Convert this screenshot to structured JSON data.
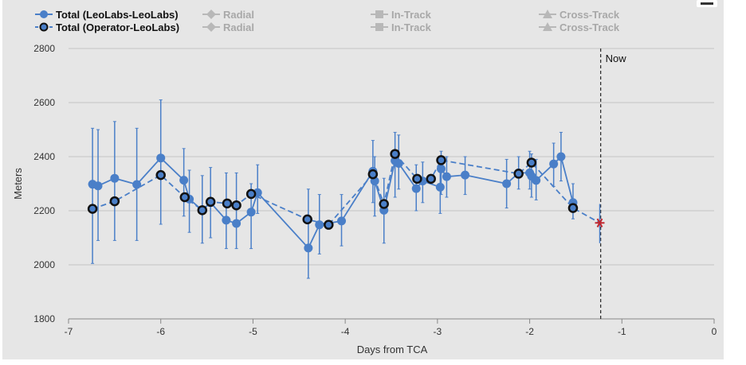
{
  "chart_data": {
    "type": "line",
    "xlabel": "Days from TCA",
    "ylabel": "Meters",
    "xlim": [
      -7,
      0
    ],
    "ylim": [
      1800,
      2800
    ],
    "xticks": [
      -7,
      -6,
      -5,
      -4,
      -3,
      -2,
      -1,
      0
    ],
    "xtick_labels": [
      "-7",
      "-6",
      "-5",
      "-4",
      "-3",
      "-2",
      "-1",
      "0"
    ],
    "yticks": [
      1800,
      2000,
      2200,
      2400,
      2600,
      2800
    ],
    "ytick_labels": [
      "1800",
      "2000",
      "2200",
      "2400",
      "2600",
      "2800"
    ],
    "grid": "horizontal",
    "legend_position": "top",
    "legend": [
      {
        "label": "Total (LeoLabs-LeoLabs)",
        "marker": "circle",
        "color": "#4a7fc8",
        "active": true
      },
      {
        "label": "Total (Operator-LeoLabs)",
        "marker": "circle-outline",
        "color": "#4a7fc8",
        "active": true
      },
      {
        "label": "Radial",
        "marker": "diamond",
        "color": "#b0b0b0",
        "active": false
      },
      {
        "label": "Radial",
        "marker": "diamond",
        "color": "#b0b0b0",
        "active": false
      },
      {
        "label": "In-Track",
        "marker": "square",
        "color": "#b0b0b0",
        "active": false
      },
      {
        "label": "In-Track",
        "marker": "square",
        "color": "#b0b0b0",
        "active": false
      },
      {
        "label": "Cross-Track",
        "marker": "triangle",
        "color": "#b0b0b0",
        "active": false
      },
      {
        "label": "Cross-Track",
        "marker": "triangle",
        "color": "#b0b0b0",
        "active": false
      }
    ],
    "annotation": {
      "label": "Now",
      "x": -1.23
    },
    "series": [
      {
        "name": "Total (LeoLabs-LeoLabs)",
        "style": "solid",
        "color": "#4a7fc8",
        "points": [
          {
            "x": -6.74,
            "y": 2298,
            "lo": 2005,
            "hi": 2505
          },
          {
            "x": -6.68,
            "y": 2292,
            "lo": 2090,
            "hi": 2500
          },
          {
            "x": -6.5,
            "y": 2320,
            "lo": 2090,
            "hi": 2530
          },
          {
            "x": -6.26,
            "y": 2297,
            "lo": 2090,
            "hi": 2505
          },
          {
            "x": -6.0,
            "y": 2395,
            "lo": 2150,
            "hi": 2610
          },
          {
            "x": -5.75,
            "y": 2313,
            "lo": 2180,
            "hi": 2430
          },
          {
            "x": -5.69,
            "y": 2243,
            "lo": 2120,
            "hi": 2350
          },
          {
            "x": -5.55,
            "y": 2202,
            "lo": 2080,
            "hi": 2330
          },
          {
            "x": -5.46,
            "y": 2230,
            "lo": 2100,
            "hi": 2360
          },
          {
            "x": -5.29,
            "y": 2165,
            "lo": 2060,
            "hi": 2340
          },
          {
            "x": -5.18,
            "y": 2153,
            "lo": 2060,
            "hi": 2340
          },
          {
            "x": -5.02,
            "y": 2195,
            "lo": 2060,
            "hi": 2300
          },
          {
            "x": -4.95,
            "y": 2267,
            "lo": 2190,
            "hi": 2370
          },
          {
            "x": -4.4,
            "y": 2062,
            "lo": 1950,
            "hi": 2280
          },
          {
            "x": -4.28,
            "y": 2148,
            "lo": 2040,
            "hi": 2260
          },
          {
            "x": -4.04,
            "y": 2162,
            "lo": 2070,
            "hi": 2260
          },
          {
            "x": -3.7,
            "y": 2346,
            "lo": 2230,
            "hi": 2460
          },
          {
            "x": -3.68,
            "y": 2310,
            "lo": 2180,
            "hi": 2400
          },
          {
            "x": -3.58,
            "y": 2202,
            "lo": 2080,
            "hi": 2320
          },
          {
            "x": -3.46,
            "y": 2385,
            "lo": 2250,
            "hi": 2490
          },
          {
            "x": -3.42,
            "y": 2375,
            "lo": 2280,
            "hi": 2480
          },
          {
            "x": -3.23,
            "y": 2282,
            "lo": 2200,
            "hi": 2370
          },
          {
            "x": -3.16,
            "y": 2310,
            "lo": 2230,
            "hi": 2380
          },
          {
            "x": -2.97,
            "y": 2287,
            "lo": 2190,
            "hi": 2370
          },
          {
            "x": -2.96,
            "y": 2355,
            "lo": 2260,
            "hi": 2420
          },
          {
            "x": -2.9,
            "y": 2326,
            "lo": 2250,
            "hi": 2400
          },
          {
            "x": -2.7,
            "y": 2332,
            "lo": 2260,
            "hi": 2400
          },
          {
            "x": -2.25,
            "y": 2300,
            "lo": 2210,
            "hi": 2390
          },
          {
            "x": -2.12,
            "y": 2340,
            "lo": 2280,
            "hi": 2400
          },
          {
            "x": -2.0,
            "y": 2340,
            "lo": 2280,
            "hi": 2420
          },
          {
            "x": -1.98,
            "y": 2328,
            "lo": 2250,
            "hi": 2410
          },
          {
            "x": -1.93,
            "y": 2312,
            "lo": 2240,
            "hi": 2390
          },
          {
            "x": -1.74,
            "y": 2373,
            "lo": 2290,
            "hi": 2450
          },
          {
            "x": -1.66,
            "y": 2400,
            "lo": 2310,
            "hi": 2490
          },
          {
            "x": -1.53,
            "y": 2230,
            "lo": 2170,
            "hi": 2300
          }
        ]
      },
      {
        "name": "Total (Operator-LeoLabs)",
        "style": "dashed",
        "color": "#4a7fc8",
        "points": [
          {
            "x": -6.74,
            "y": 2207
          },
          {
            "x": -6.5,
            "y": 2235
          },
          {
            "x": -6.0,
            "y": 2332
          },
          {
            "x": -5.74,
            "y": 2250
          },
          {
            "x": -5.55,
            "y": 2202
          },
          {
            "x": -5.46,
            "y": 2233
          },
          {
            "x": -5.28,
            "y": 2227
          },
          {
            "x": -5.18,
            "y": 2220
          },
          {
            "x": -5.02,
            "y": 2262
          },
          {
            "x": -4.41,
            "y": 2168
          },
          {
            "x": -4.18,
            "y": 2148
          },
          {
            "x": -3.7,
            "y": 2335
          },
          {
            "x": -3.58,
            "y": 2225
          },
          {
            "x": -3.46,
            "y": 2410
          },
          {
            "x": -3.22,
            "y": 2318
          },
          {
            "x": -3.07,
            "y": 2318
          },
          {
            "x": -2.96,
            "y": 2387
          },
          {
            "x": -2.12,
            "y": 2337
          },
          {
            "x": -1.98,
            "y": 2378
          },
          {
            "x": -1.53,
            "y": 2210
          }
        ]
      }
    ],
    "projected_point": {
      "x": -1.24,
      "y": 2155,
      "lo": 2080,
      "hi": 2225,
      "color": "#c0262e"
    }
  }
}
